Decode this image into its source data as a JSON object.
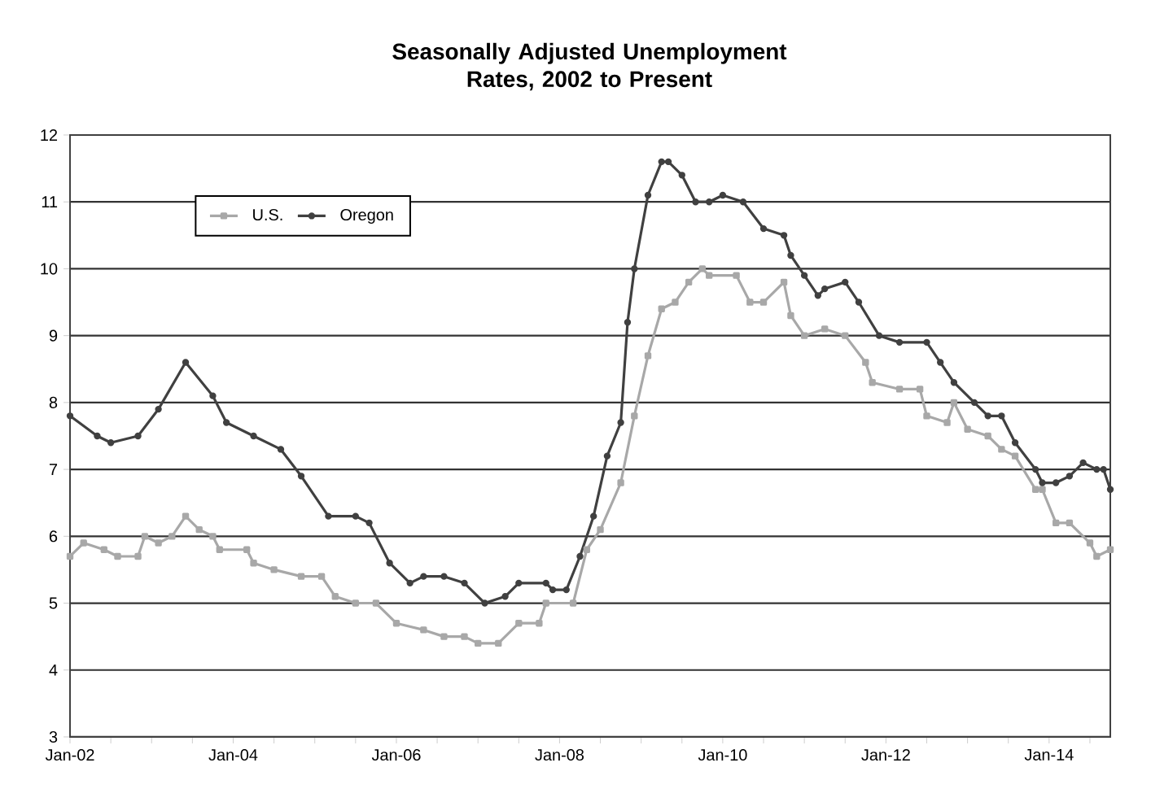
{
  "chart_data": {
    "type": "line",
    "title": "Seasonally Adjusted Unemployment Rates, 2002 to Present",
    "xlim": [
      "2002-01",
      "2014-10"
    ],
    "xticks": [
      {
        "value": "2002-01",
        "label": "Jan-02"
      },
      {
        "value": "2002-07",
        "label": null
      },
      {
        "value": "2003-01",
        "label": null
      },
      {
        "value": "2003-07",
        "label": null
      },
      {
        "value": "2004-01",
        "label": "Jan-04"
      },
      {
        "value": "2004-07",
        "label": null
      },
      {
        "value": "2005-01",
        "label": null
      },
      {
        "value": "2005-07",
        "label": null
      },
      {
        "value": "2006-01",
        "label": "Jan-06"
      },
      {
        "value": "2006-07",
        "label": null
      },
      {
        "value": "2007-01",
        "label": null
      },
      {
        "value": "2007-07",
        "label": null
      },
      {
        "value": "2008-01",
        "label": "Jan-08"
      },
      {
        "value": "2008-07",
        "label": null
      },
      {
        "value": "2009-01",
        "label": null
      },
      {
        "value": "2009-07",
        "label": null
      },
      {
        "value": "2010-01",
        "label": "Jan-10"
      },
      {
        "value": "2010-07",
        "label": null
      },
      {
        "value": "2011-01",
        "label": null
      },
      {
        "value": "2011-07",
        "label": null
      },
      {
        "value": "2012-01",
        "label": "Jan-12"
      },
      {
        "value": "2012-07",
        "label": null
      },
      {
        "value": "2013-01",
        "label": null
      },
      {
        "value": "2013-07",
        "label": null
      },
      {
        "value": "2014-01",
        "label": "Jan-14"
      },
      {
        "value": "2014-07",
        "label": null
      }
    ],
    "ylim": [
      3,
      12
    ],
    "yticks": [
      3,
      4,
      5,
      6,
      7,
      8,
      9,
      10,
      11,
      12
    ],
    "grid": "y",
    "legend": "top left",
    "line_style": "solid",
    "series": [
      {
        "name": "U.S.",
        "color": "#a8a8a8",
        "marker": "square",
        "x": [
          "2002-01",
          "2002-03",
          "2002-06",
          "2002-08",
          "2002-11",
          "2002-12",
          "2003-02",
          "2003-04",
          "2003-06",
          "2003-08",
          "2003-10",
          "2003-11",
          "2004-03",
          "2004-04",
          "2004-07",
          "2004-11",
          "2005-02",
          "2005-04",
          "2005-07",
          "2005-10",
          "2006-01",
          "2006-05",
          "2006-08",
          "2006-11",
          "2007-01",
          "2007-04",
          "2007-07",
          "2007-10",
          "2007-11",
          "2008-03",
          "2008-05",
          "2008-07",
          "2008-10",
          "2008-12",
          "2009-02",
          "2009-04",
          "2009-06",
          "2009-08",
          "2009-10",
          "2009-11",
          "2010-03",
          "2010-05",
          "2010-07",
          "2010-10",
          "2010-11",
          "2011-01",
          "2011-04",
          "2011-07",
          "2011-10",
          "2011-11",
          "2012-03",
          "2012-06",
          "2012-07",
          "2012-10",
          "2012-11",
          "2013-01",
          "2013-04",
          "2013-06",
          "2013-08",
          "2013-11",
          "2013-12",
          "2014-02",
          "2014-04",
          "2014-07",
          "2014-08",
          "2014-10"
        ],
        "values": [
          5.7,
          5.9,
          5.8,
          5.7,
          5.7,
          6.0,
          5.9,
          6.0,
          6.3,
          6.1,
          6.0,
          5.8,
          5.8,
          5.6,
          5.5,
          5.4,
          5.4,
          5.1,
          5.0,
          5.0,
          4.7,
          4.6,
          4.5,
          4.5,
          4.4,
          4.4,
          4.7,
          4.7,
          5.0,
          5.0,
          5.8,
          6.1,
          6.8,
          7.8,
          8.7,
          9.4,
          9.5,
          9.8,
          10.0,
          9.9,
          9.9,
          9.5,
          9.5,
          9.8,
          9.3,
          9.0,
          9.1,
          9.0,
          8.6,
          8.3,
          8.2,
          8.2,
          7.8,
          7.7,
          8.0,
          7.6,
          7.5,
          7.3,
          7.2,
          6.7,
          6.7,
          6.2,
          6.2,
          5.9,
          5.7,
          5.8
        ]
      },
      {
        "name": "Oregon",
        "color": "#404040",
        "marker": "circle",
        "x": [
          "2002-01",
          "2002-05",
          "2002-07",
          "2002-11",
          "2003-02",
          "2003-06",
          "2003-10",
          "2003-12",
          "2004-04",
          "2004-08",
          "2004-11",
          "2005-03",
          "2005-07",
          "2005-09",
          "2005-12",
          "2006-03",
          "2006-05",
          "2006-08",
          "2006-11",
          "2007-02",
          "2007-05",
          "2007-07",
          "2007-11",
          "2007-12",
          "2008-02",
          "2008-04",
          "2008-06",
          "2008-08",
          "2008-10",
          "2008-11",
          "2008-12",
          "2009-02",
          "2009-04",
          "2009-05",
          "2009-07",
          "2009-09",
          "2009-11",
          "2010-01",
          "2010-04",
          "2010-07",
          "2010-10",
          "2010-11",
          "2011-01",
          "2011-03",
          "2011-04",
          "2011-07",
          "2011-09",
          "2011-12",
          "2012-03",
          "2012-07",
          "2012-09",
          "2012-11",
          "2013-02",
          "2013-04",
          "2013-06",
          "2013-08",
          "2013-11",
          "2013-12",
          "2014-02",
          "2014-04",
          "2014-06",
          "2014-08",
          "2014-09",
          "2014-10"
        ],
        "values": [
          7.8,
          7.5,
          7.4,
          7.5,
          7.9,
          8.6,
          8.1,
          7.7,
          7.5,
          7.3,
          6.9,
          6.3,
          6.3,
          6.2,
          5.6,
          5.3,
          5.4,
          5.4,
          5.3,
          5.0,
          5.1,
          5.3,
          5.3,
          5.2,
          5.2,
          5.7,
          6.3,
          7.2,
          7.7,
          9.2,
          10.0,
          11.1,
          11.6,
          11.6,
          11.4,
          11.0,
          11.0,
          11.1,
          11.0,
          10.6,
          10.5,
          10.2,
          9.9,
          9.6,
          9.7,
          9.8,
          9.5,
          9.0,
          8.9,
          8.9,
          8.6,
          8.3,
          8.0,
          7.8,
          7.8,
          7.4,
          7.0,
          6.8,
          6.8,
          6.9,
          7.1,
          7.0,
          7.0,
          6.7
        ]
      }
    ]
  }
}
